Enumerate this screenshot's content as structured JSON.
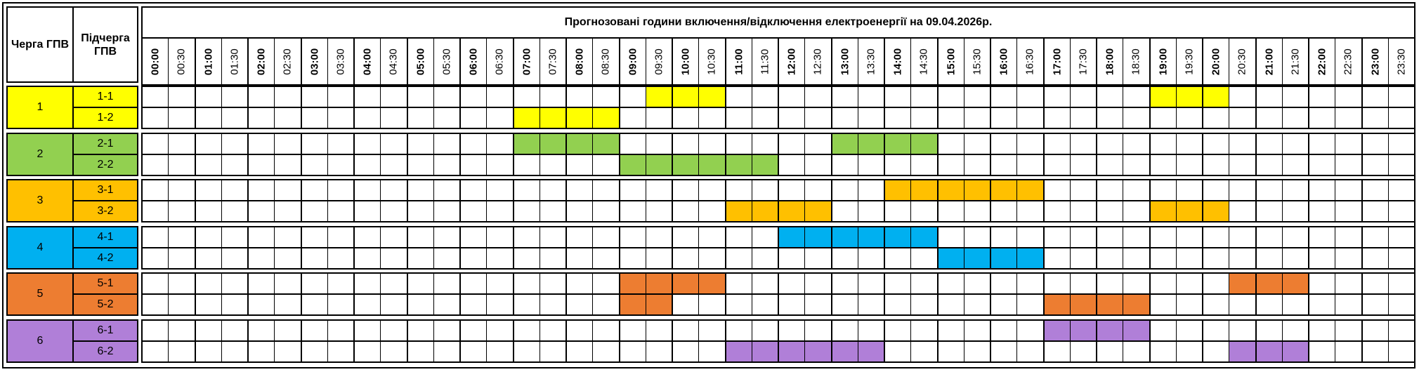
{
  "header": {
    "queue_label": "Черга ГПВ",
    "subqueue_label": "Підчерга ГПВ",
    "title": "Прогнозовані години включення/відключення електроенергії на 09.04.2026р."
  },
  "time_slots": [
    "00:00",
    "00:30",
    "01:00",
    "01:30",
    "02:00",
    "02:30",
    "03:00",
    "03:30",
    "04:00",
    "04:30",
    "05:00",
    "05:30",
    "06:00",
    "06:30",
    "07:00",
    "07:30",
    "08:00",
    "08:30",
    "09:00",
    "09:30",
    "10:00",
    "10:30",
    "11:00",
    "11:30",
    "12:00",
    "12:30",
    "13:00",
    "13:30",
    "14:00",
    "14:30",
    "15:00",
    "15:30",
    "16:00",
    "16:30",
    "17:00",
    "17:30",
    "18:00",
    "18:30",
    "19:00",
    "19:30",
    "20:00",
    "20:30",
    "21:00",
    "21:30",
    "22:00",
    "22:30",
    "23:00",
    "23:30"
  ],
  "groups": [
    {
      "label": "1",
      "color": "#ffff00",
      "subgroups": [
        {
          "label": "1-1",
          "off_slots": [
            "09:30",
            "10:00",
            "10:30",
            "19:00",
            "19:30",
            "20:00"
          ]
        },
        {
          "label": "1-2",
          "off_slots": [
            "07:00",
            "07:30",
            "08:00",
            "08:30"
          ]
        }
      ]
    },
    {
      "label": "2",
      "color": "#92d050",
      "subgroups": [
        {
          "label": "2-1",
          "off_slots": [
            "07:00",
            "07:30",
            "08:00",
            "08:30",
            "13:00",
            "13:30",
            "14:00",
            "14:30"
          ]
        },
        {
          "label": "2-2",
          "off_slots": [
            "09:00",
            "09:30",
            "10:00",
            "10:30",
            "11:00",
            "11:30"
          ]
        }
      ]
    },
    {
      "label": "3",
      "color": "#ffc000",
      "subgroups": [
        {
          "label": "3-1",
          "off_slots": [
            "14:00",
            "14:30",
            "15:00",
            "15:30",
            "16:00",
            "16:30"
          ]
        },
        {
          "label": "3-2",
          "off_slots": [
            "11:00",
            "11:30",
            "12:00",
            "12:30",
            "19:00",
            "19:30",
            "20:00"
          ]
        }
      ]
    },
    {
      "label": "4",
      "color": "#00b0f0",
      "subgroups": [
        {
          "label": "4-1",
          "off_slots": [
            "12:00",
            "12:30",
            "13:00",
            "13:30",
            "14:00",
            "14:30"
          ]
        },
        {
          "label": "4-2",
          "off_slots": [
            "15:00",
            "15:30",
            "16:00",
            "16:30"
          ]
        }
      ]
    },
    {
      "label": "5",
      "color": "#ed7d31",
      "subgroups": [
        {
          "label": "5-1",
          "off_slots": [
            "09:00",
            "09:30",
            "10:00",
            "10:30",
            "20:30",
            "21:00",
            "21:30"
          ]
        },
        {
          "label": "5-2",
          "off_slots": [
            "09:00",
            "09:30",
            "17:00",
            "17:30",
            "18:00",
            "18:30"
          ]
        }
      ]
    },
    {
      "label": "6",
      "color": "#b07fd8",
      "subgroups": [
        {
          "label": "6-1",
          "off_slots": [
            "17:00",
            "17:30",
            "18:00",
            "18:30"
          ]
        },
        {
          "label": "6-2",
          "off_slots": [
            "11:00",
            "11:30",
            "12:00",
            "12:30",
            "13:00",
            "13:30",
            "20:30",
            "21:00",
            "21:30"
          ]
        }
      ]
    }
  ]
}
